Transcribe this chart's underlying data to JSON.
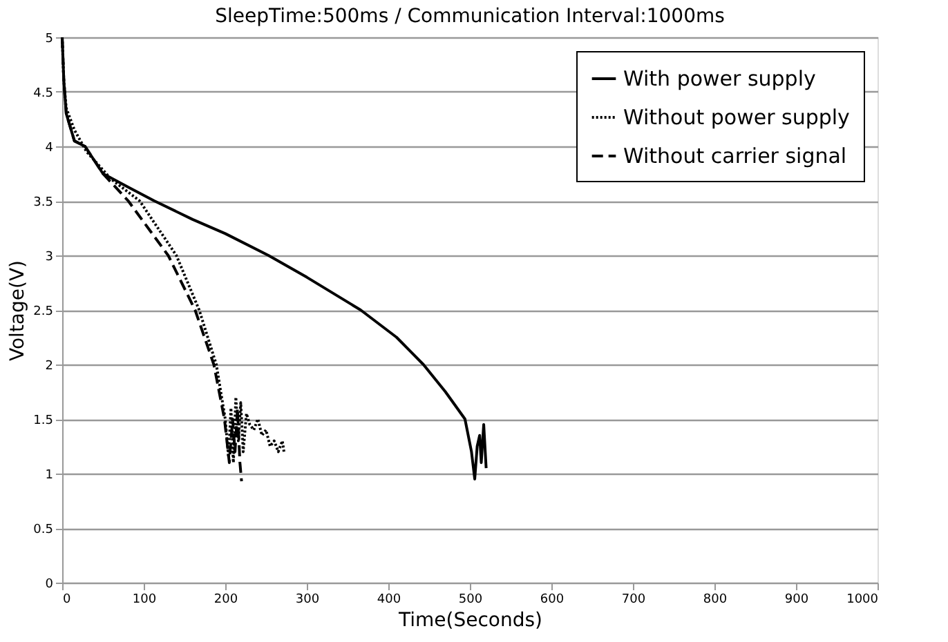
{
  "chart_data": {
    "type": "line",
    "title": "SleepTime:500ms / Communication Interval:1000ms",
    "xlabel": "Time(Seconds)",
    "ylabel": "Voltage(V)",
    "xlim": [
      0,
      1000
    ],
    "xticks": [
      0,
      100,
      200,
      300,
      400,
      500,
      600,
      700,
      800,
      900,
      1000
    ],
    "ylim": [
      0,
      5
    ],
    "yticks": [
      0,
      0.5,
      1,
      1.5,
      2,
      2.5,
      3,
      3.5,
      4,
      4.5,
      5
    ],
    "grid": "y",
    "legend": "top right",
    "marker": "none",
    "series": [
      {
        "name": "With power supply",
        "color": "#000000",
        "line_style": "solid",
        "x": [
          0,
          2,
          5,
          15,
          28,
          50,
          80,
          113,
          160,
          200,
          253,
          300,
          366,
          410,
          443,
          470,
          494,
          502,
          506,
          509,
          512,
          514,
          517,
          520
        ],
        "values": [
          5,
          4.6,
          4.3,
          4.05,
          4.0,
          3.75,
          3.63,
          3.5,
          3.33,
          3.2,
          3.0,
          2.8,
          2.5,
          2.25,
          2.0,
          1.75,
          1.5,
          1.2,
          0.95,
          1.25,
          1.35,
          1.1,
          1.45,
          1.05
        ]
      },
      {
        "name": "Without power supply",
        "color": "#000000",
        "line_style": "dotted",
        "x": [
          0,
          2,
          5,
          15,
          30,
          60,
          95,
          140,
          168,
          189,
          200,
          204,
          207,
          210,
          213,
          216,
          219,
          222,
          226,
          230,
          235,
          240,
          245,
          250,
          255,
          260,
          265,
          270,
          272
        ],
        "values": [
          5,
          4.6,
          4.35,
          4.15,
          3.95,
          3.7,
          3.5,
          3.0,
          2.5,
          2.0,
          1.5,
          1.15,
          1.6,
          1.1,
          1.7,
          1.3,
          1.65,
          1.2,
          1.55,
          1.45,
          1.4,
          1.5,
          1.35,
          1.4,
          1.25,
          1.3,
          1.2,
          1.3,
          1.2
        ]
      },
      {
        "name": "Without carrier signal",
        "color": "#000000",
        "line_style": "dashed",
        "x": [
          0,
          2,
          5,
          15,
          28,
          50,
          81,
          130,
          163,
          186,
          199,
          205,
          209,
          212,
          215,
          218,
          220
        ],
        "values": [
          5,
          4.6,
          4.3,
          4.05,
          4.0,
          3.75,
          3.5,
          3.0,
          2.5,
          2.0,
          1.5,
          1.1,
          1.5,
          1.2,
          1.6,
          1.1,
          0.93
        ]
      }
    ]
  }
}
